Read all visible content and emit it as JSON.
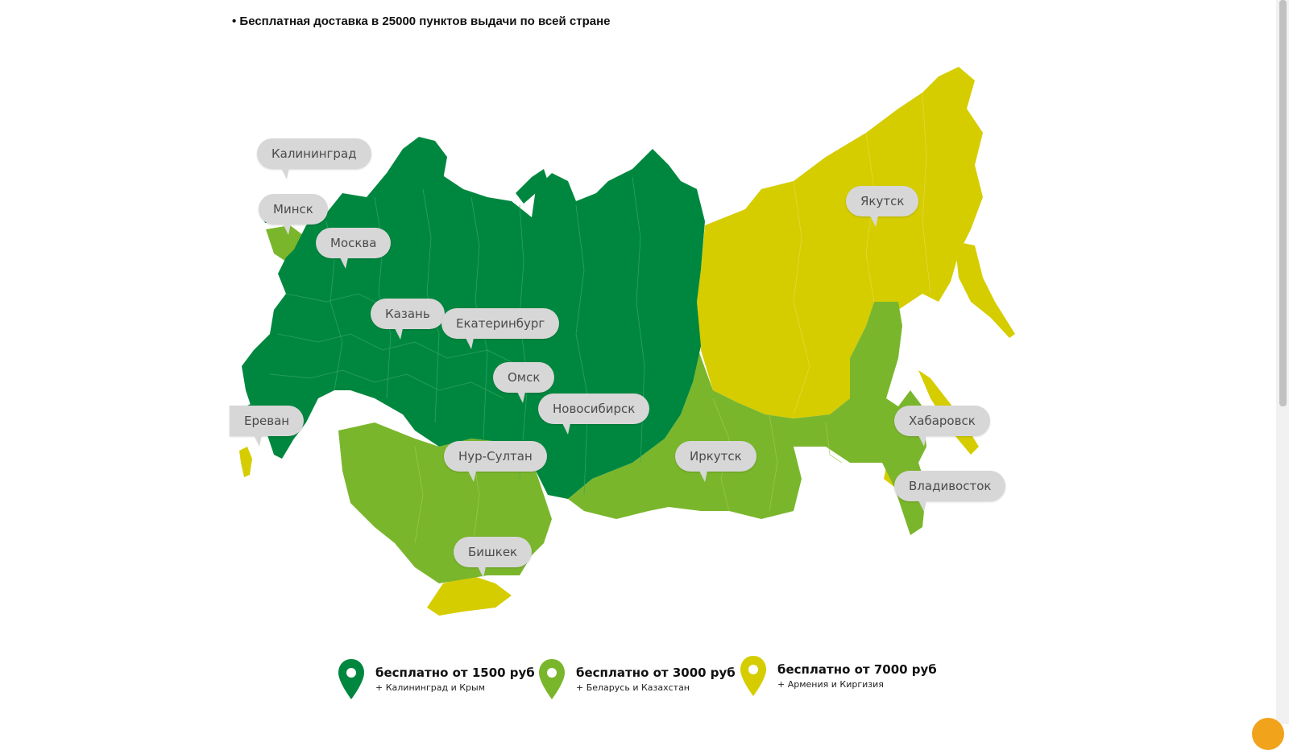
{
  "headline": "• Бесплатная доставка в 25000 пунктов выдачи по всей стране",
  "colors": {
    "zone1": "#00873f",
    "zone2": "#7ab62c",
    "zone3": "#d5cd00",
    "bubble": "#d7d7d7",
    "borders": "#3aa864"
  },
  "cities": [
    {
      "label": "Калининград"
    },
    {
      "label": "Минск"
    },
    {
      "label": "Москва"
    },
    {
      "label": "Казань"
    },
    {
      "label": "Екатеринбург"
    },
    {
      "label": "Омск"
    },
    {
      "label": "Новосибирск"
    },
    {
      "label": "Ереван"
    },
    {
      "label": "Нур-Султан"
    },
    {
      "label": "Бишкек"
    },
    {
      "label": "Иркутск"
    },
    {
      "label": "Якутск"
    },
    {
      "label": "Хабаровск"
    },
    {
      "label": "Владивосток"
    }
  ],
  "legend": [
    {
      "title": "бесплатно от 1500 руб",
      "subtitle": "+ Калининград и Крым",
      "color": "#00873f",
      "icon": "map-pin-icon"
    },
    {
      "title": "бесплатно от 3000 руб",
      "subtitle": "+ Беларусь и Казахстан",
      "color": "#7ab62c",
      "icon": "map-pin-icon"
    },
    {
      "title": "бесплатно от 7000 руб",
      "subtitle": "+ Армения и Киргизия",
      "color": "#d5cd00",
      "icon": "map-pin-icon"
    }
  ]
}
